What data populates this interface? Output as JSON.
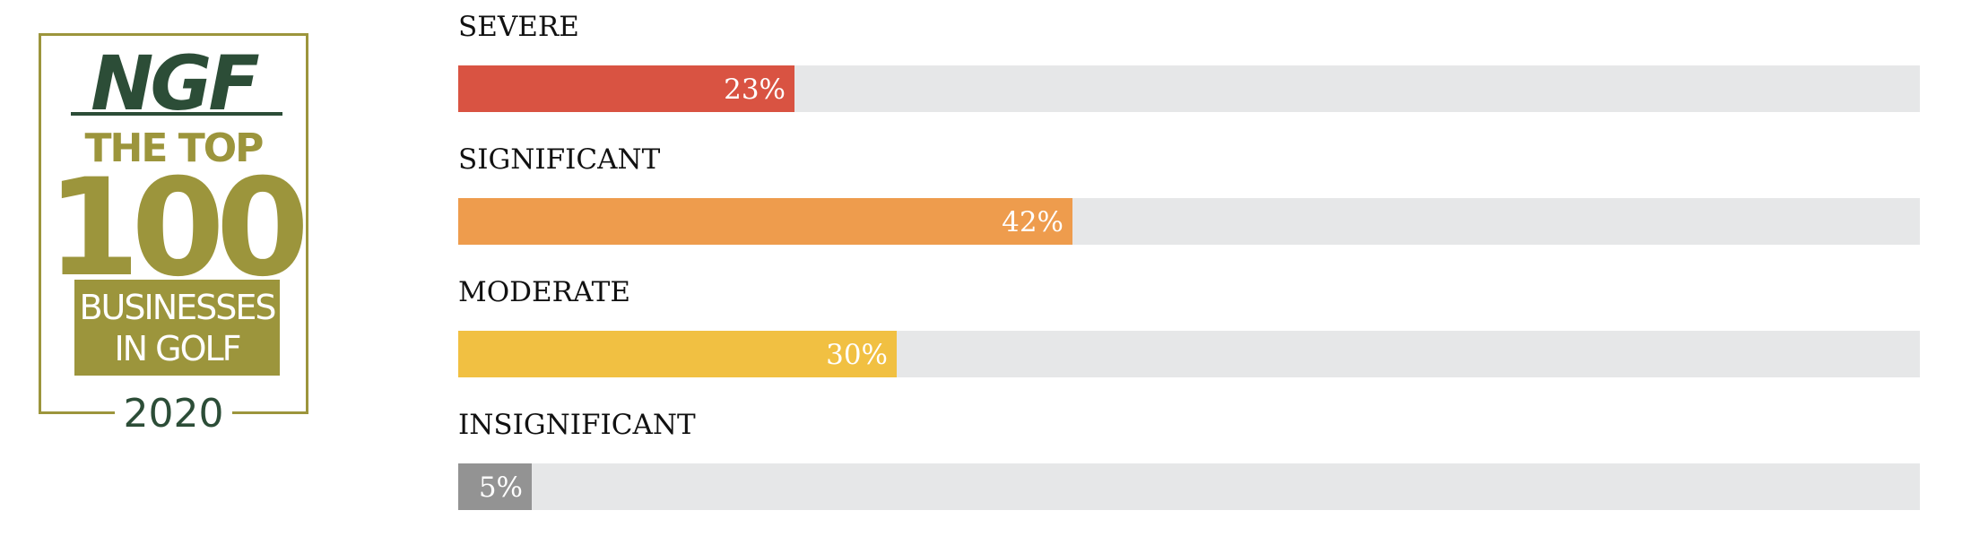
{
  "logo": {
    "brand": "NGF",
    "line1": "THE TOP",
    "line2": "100",
    "box_line1": "BUSINESSES",
    "box_line2": "IN GOLF",
    "year": "2020",
    "colors": {
      "olive": "#9c953c",
      "green": "#2c4d37"
    }
  },
  "chart_data": {
    "type": "bar",
    "orientation": "horizontal",
    "categories": [
      "SEVERE",
      "SIGNIFICANT",
      "MODERATE",
      "INSIGNIFICANT"
    ],
    "values": [
      23,
      42,
      30,
      5
    ],
    "value_labels": [
      "23%",
      "42%",
      "30%",
      "5%"
    ],
    "unit": "%",
    "xlim": [
      0,
      100
    ],
    "colors": [
      "#d95342",
      "#ee9c4d",
      "#f1c042",
      "#939393"
    ],
    "track_color": "#e6e7e8",
    "title": "",
    "xlabel": "",
    "ylabel": "",
    "grid": false,
    "legend": "none"
  }
}
